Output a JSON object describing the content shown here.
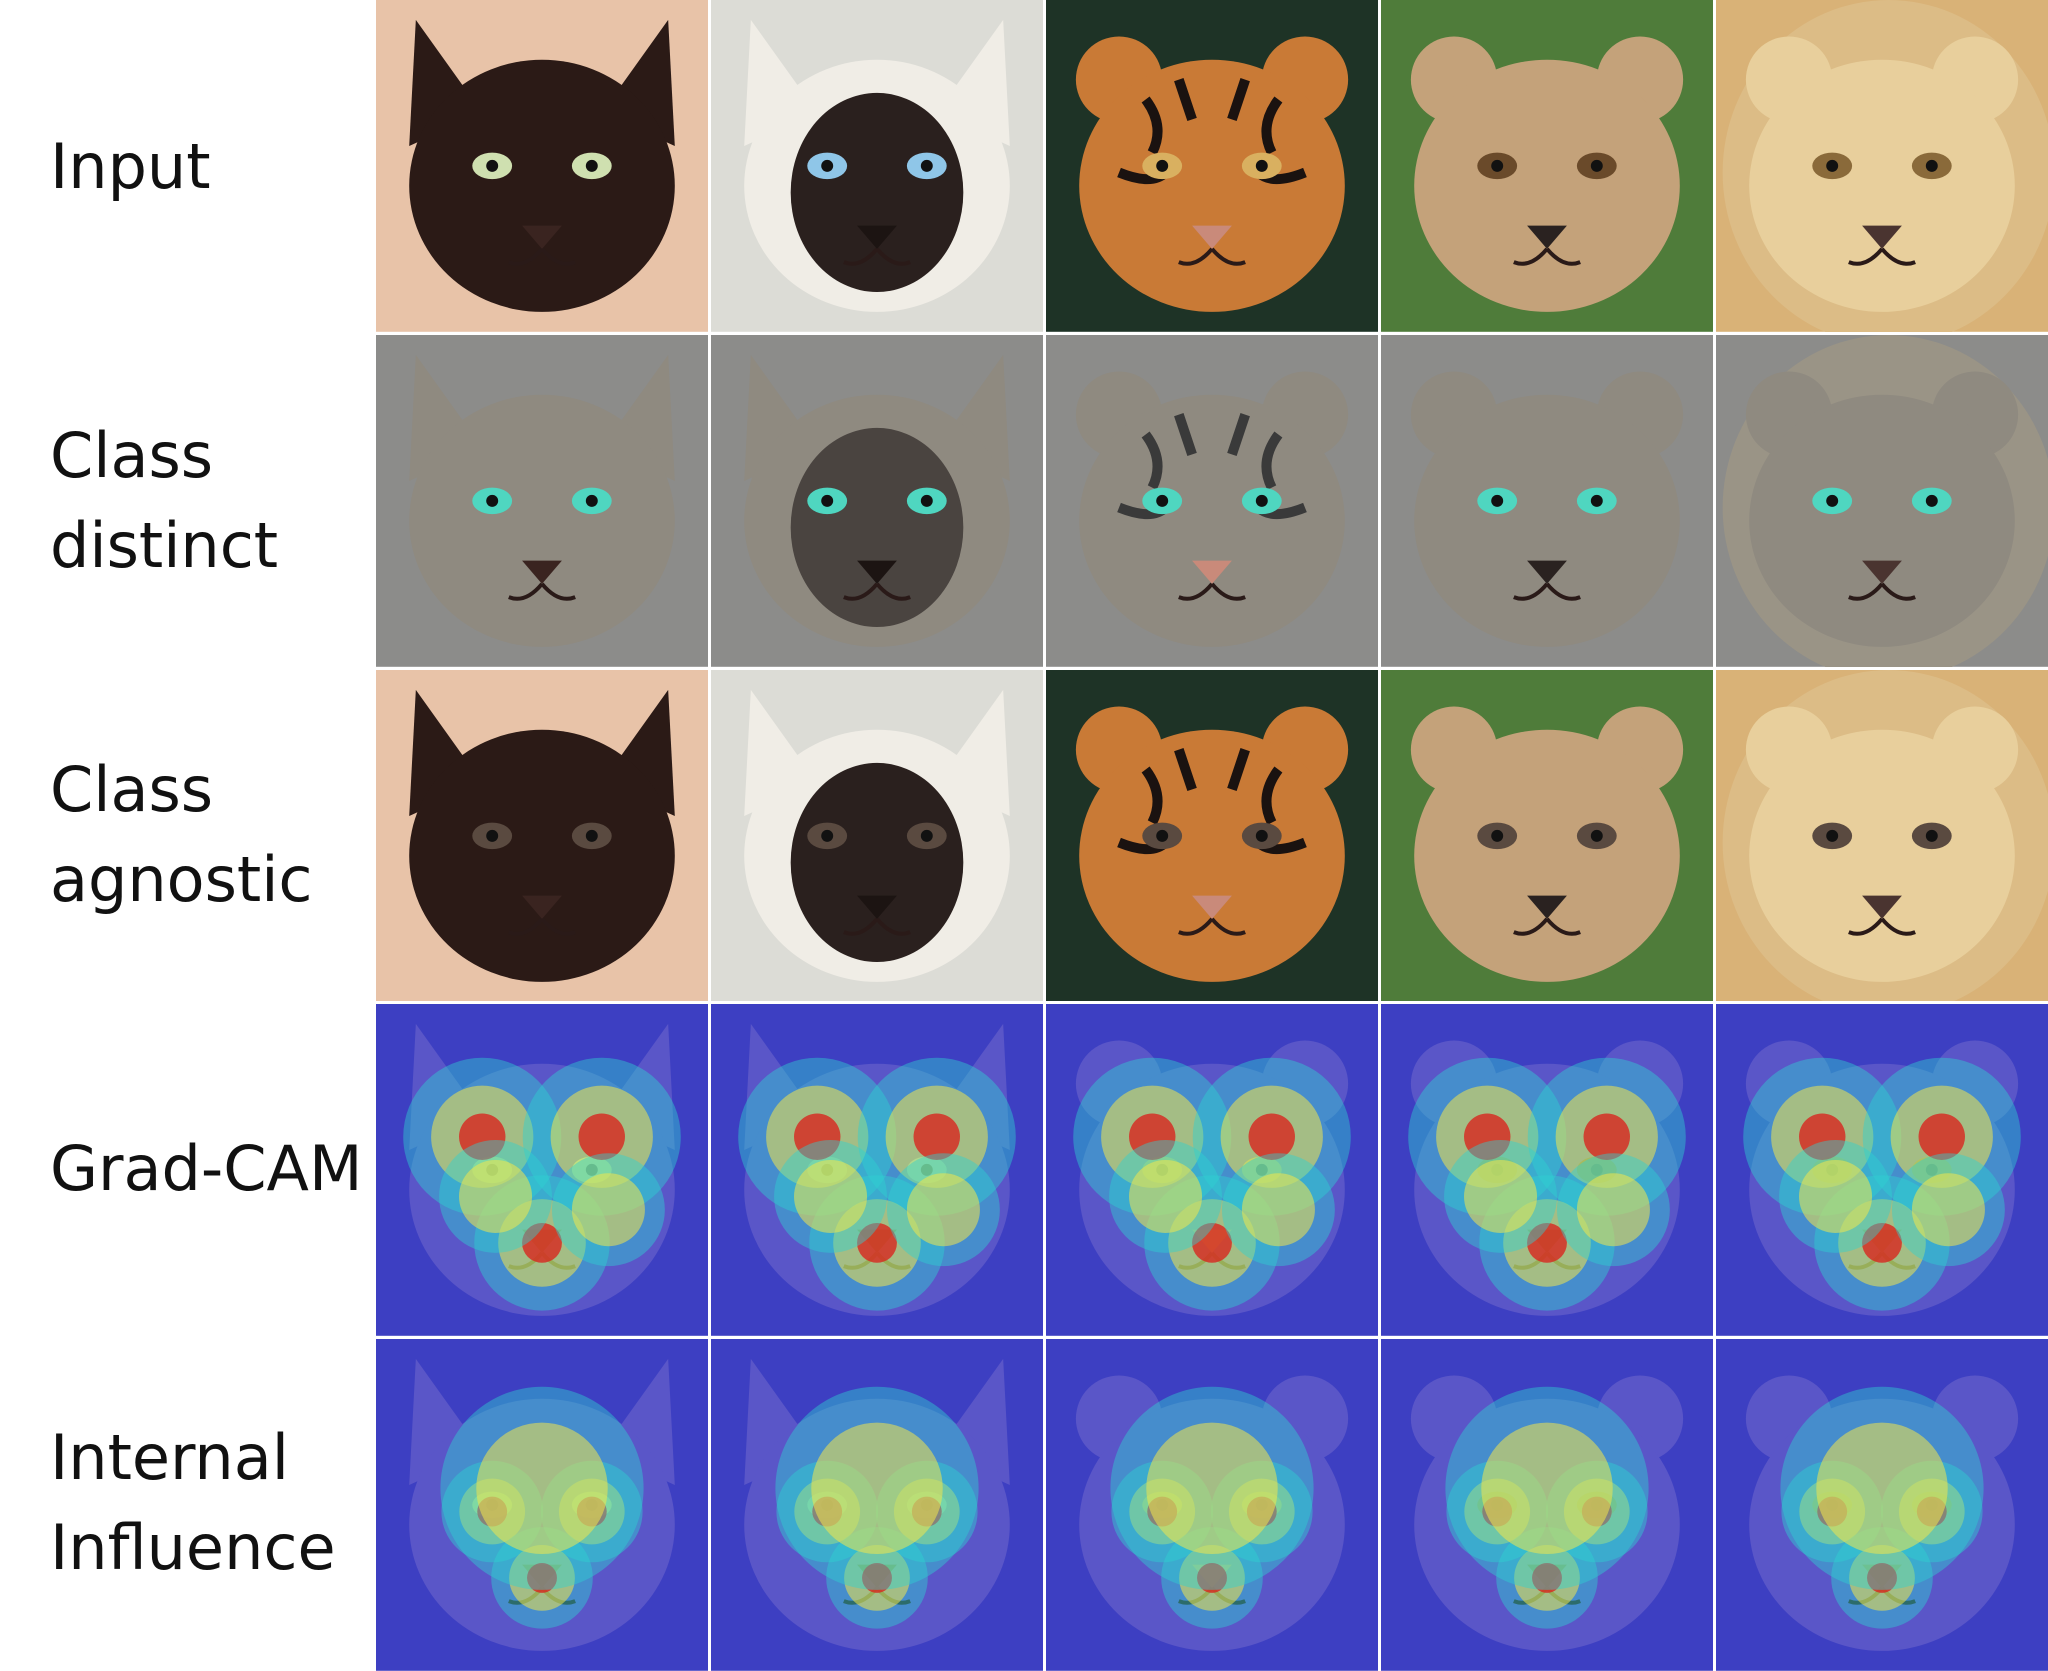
{
  "rows": [
    {
      "key": "input",
      "label": "Input"
    },
    {
      "key": "distinct",
      "label": "Class\ndistinct"
    },
    {
      "key": "agnostic",
      "label": "Class\nagnostic"
    },
    {
      "key": "gradcam",
      "label": "Grad-CAM"
    },
    {
      "key": "influence",
      "label": "Internal\nInfluence"
    }
  ],
  "animals": [
    {
      "key": "black-cat",
      "bg": "#e8c3a8",
      "fur": "#2b1a16",
      "eye": "#cfe0b0",
      "nose": "#3a2420",
      "ear": "pointy"
    },
    {
      "key": "siamese",
      "bg": "#dcdcd6",
      "fur": "#f0ede6",
      "mask": "#2a201e",
      "eye": "#8fc6e8",
      "nose": "#1c1412",
      "ear": "pointy"
    },
    {
      "key": "tiger",
      "bg": "#1e3326",
      "fur": "#c97a36",
      "eye": "#d9b060",
      "nose": "#c98a7a",
      "ear": "round",
      "stripes": true
    },
    {
      "key": "cheetah",
      "bg": "#4f7c3a",
      "fur": "#c4a27a",
      "eye": "#6a4a2a",
      "nose": "#2a2220",
      "ear": "round"
    },
    {
      "key": "lion",
      "bg": "#d9b277",
      "fur": "#e8cf9c",
      "eye": "#8a6a3a",
      "nose": "#4a3430",
      "ear": "round",
      "mane": true
    }
  ],
  "colors": {
    "distinct_bg": "#8c8c8a",
    "heat_base": "#3d3fc2",
    "heat_low": "#2fd0d0",
    "heat_mid": "#f2e64a",
    "heat_high": "#d8261e"
  }
}
